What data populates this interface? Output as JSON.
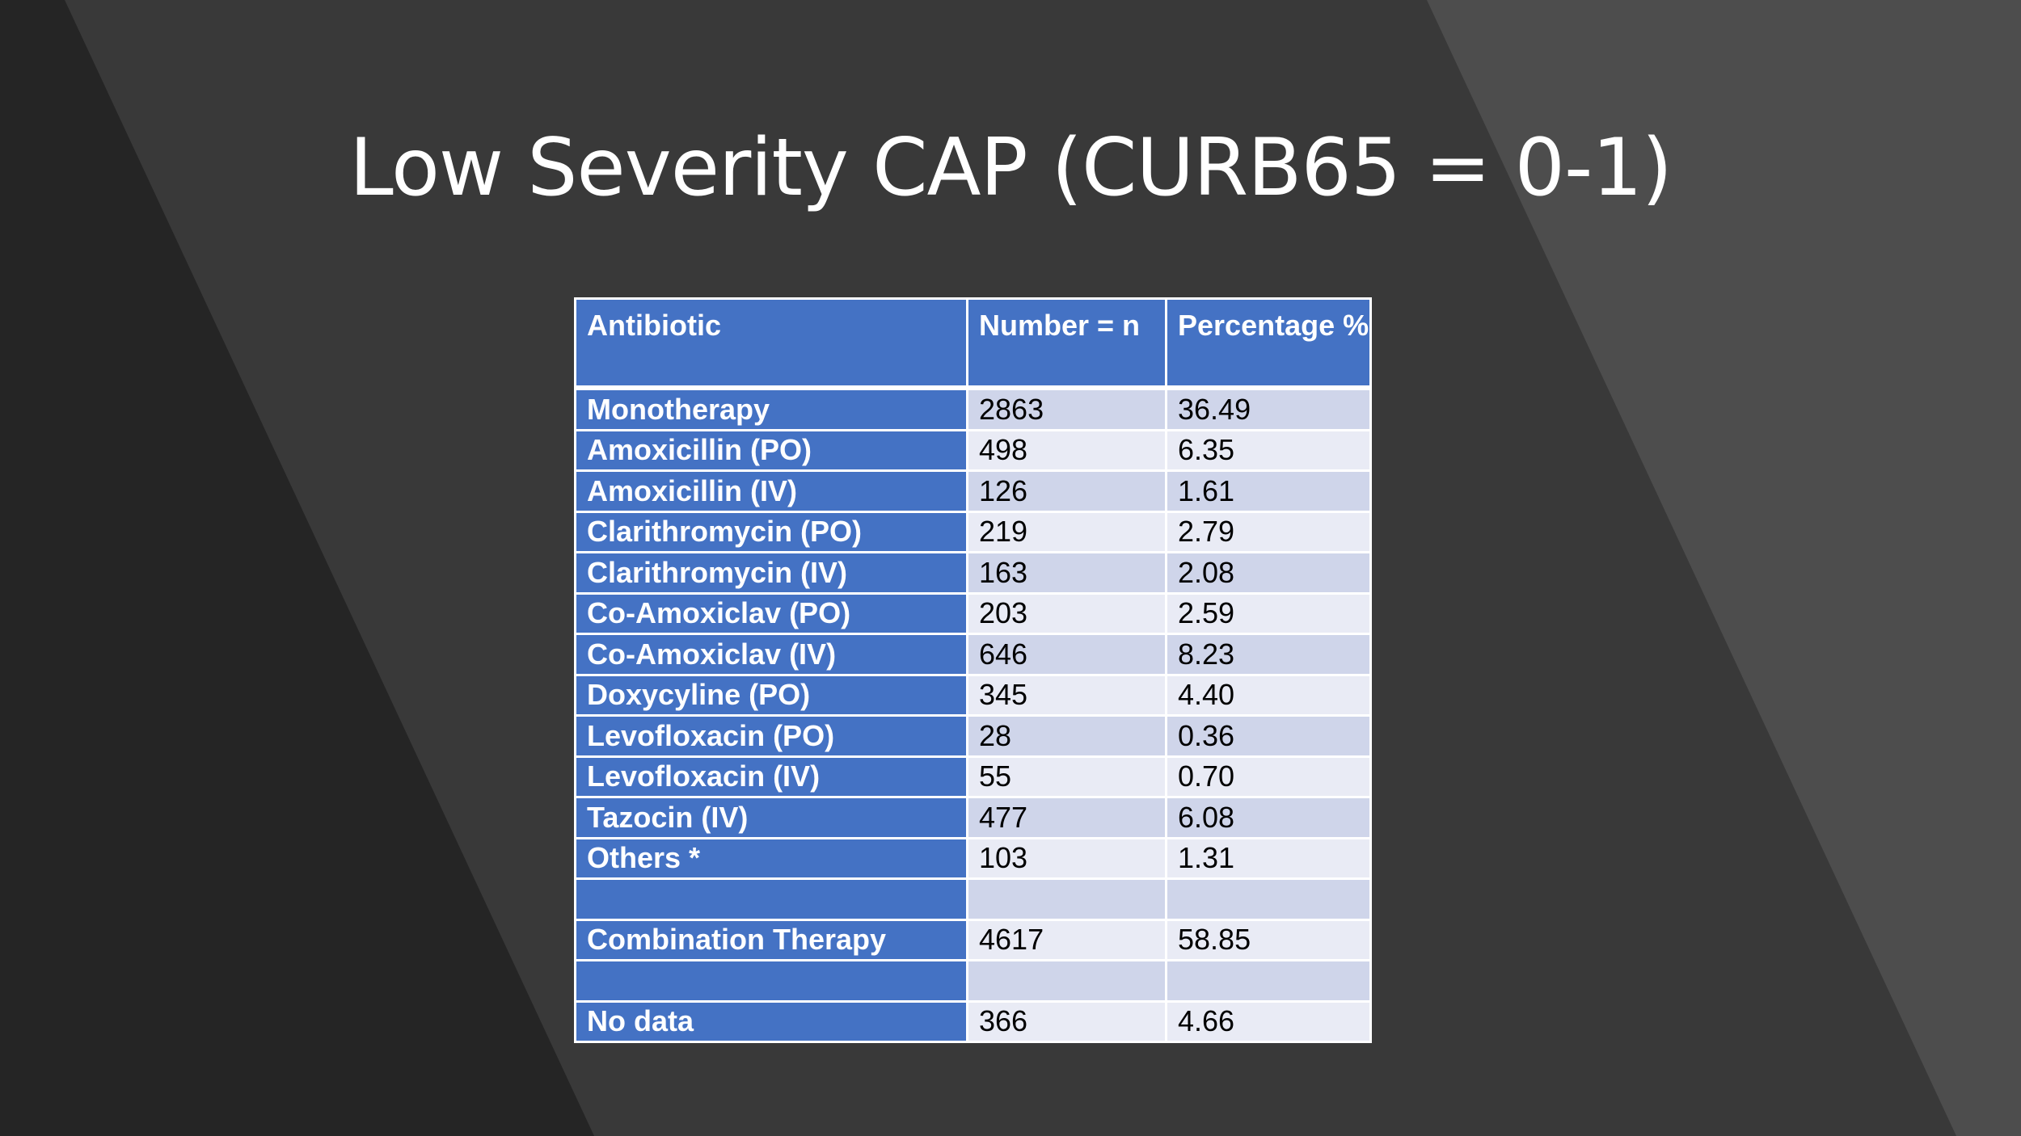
{
  "slide": {
    "title": "Low Severity CAP (CURB65 = 0-1)"
  },
  "table": {
    "headers": [
      "Antibiotic",
      "Number = n",
      "Percentage %"
    ],
    "rows": [
      {
        "antibiotic": "Monotherapy",
        "number": "2863",
        "percentage": "36.49"
      },
      {
        "antibiotic": "Amoxicillin (PO)",
        "number": "498",
        "percentage": "6.35"
      },
      {
        "antibiotic": "Amoxicillin (IV)",
        "number": "126",
        "percentage": "1.61"
      },
      {
        "antibiotic": "Clarithromycin (PO)",
        "number": "219",
        "percentage": "2.79"
      },
      {
        "antibiotic": "Clarithromycin (IV)",
        "number": "163",
        "percentage": "2.08"
      },
      {
        "antibiotic": "Co-Amoxiclav (PO)",
        "number": "203",
        "percentage": "2.59"
      },
      {
        "antibiotic": "Co-Amoxiclav (IV)",
        "number": "646",
        "percentage": "8.23"
      },
      {
        "antibiotic": "Doxycyline (PO)",
        "number": "345",
        "percentage": "4.40"
      },
      {
        "antibiotic": "Levofloxacin (PO)",
        "number": "28",
        "percentage": "0.36"
      },
      {
        "antibiotic": "Levofloxacin (IV)",
        "number": "55",
        "percentage": "0.70"
      },
      {
        "antibiotic": "Tazocin (IV)",
        "number": "477",
        "percentage": "6.08"
      },
      {
        "antibiotic": "Others *",
        "number": "103",
        "percentage": "1.31"
      },
      {
        "antibiotic": "",
        "number": "",
        "percentage": ""
      },
      {
        "antibiotic": "Combination Therapy",
        "number": "4617",
        "percentage": "58.85"
      },
      {
        "antibiotic": "",
        "number": "",
        "percentage": ""
      },
      {
        "antibiotic": "No data",
        "number": "366",
        "percentage": "4.66"
      }
    ]
  },
  "colors": {
    "background": "#393939",
    "header_fill": "#4472c4",
    "band_dark": "#cfd5ea",
    "band_light": "#e9ebf5",
    "title_text": "#ffffff"
  }
}
